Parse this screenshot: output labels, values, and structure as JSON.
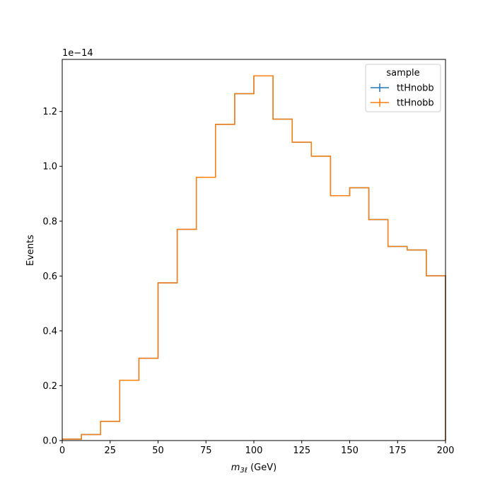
{
  "chart_data": {
    "type": "histogram-step",
    "title": "",
    "xlabel_italic": "m",
    "xlabel_sub": "3ℓ",
    "xlabel_unit": " (GeV)",
    "ylabel": "Events",
    "y_offset_label": "1e−14",
    "xlim": [
      0,
      200
    ],
    "ylim": [
      0,
      1.39
    ],
    "y_scale_factor": "1e-14",
    "bin_edges": [
      0,
      10,
      20,
      30,
      40,
      50,
      60,
      70,
      80,
      90,
      100,
      110,
      120,
      130,
      140,
      150,
      160,
      170,
      180,
      190,
      200
    ],
    "x_ticks": [
      0,
      25,
      50,
      75,
      100,
      125,
      150,
      175,
      200
    ],
    "x_tick_labels": [
      "0",
      "25",
      "50",
      "75",
      "100",
      "125",
      "150",
      "175",
      "200"
    ],
    "y_ticks": [
      0,
      0.2,
      0.4,
      0.6,
      0.8,
      1.0,
      1.2
    ],
    "y_tick_labels": [
      "0.0",
      "0.2",
      "0.4",
      "0.6",
      "0.8",
      "1.0",
      "1.2"
    ],
    "legend": {
      "title": "sample",
      "placement": "top-right",
      "entries": [
        "ttHnobb",
        "ttHnobb"
      ]
    },
    "series": [
      {
        "name": "ttHnobb",
        "color": "#1f77b4",
        "values": [
          0.005,
          0.022,
          0.07,
          0.22,
          0.3,
          0.575,
          0.77,
          0.96,
          1.153,
          1.265,
          1.33,
          1.172,
          1.088,
          1.037,
          0.893,
          0.922,
          0.806,
          0.708,
          0.695,
          0.601
        ]
      },
      {
        "name": "ttHnobb",
        "color": "#ff7f0e",
        "values": [
          0.005,
          0.022,
          0.07,
          0.22,
          0.3,
          0.575,
          0.77,
          0.96,
          1.153,
          1.265,
          1.33,
          1.172,
          1.088,
          1.037,
          0.893,
          0.922,
          0.806,
          0.708,
          0.695,
          0.601
        ]
      }
    ]
  }
}
